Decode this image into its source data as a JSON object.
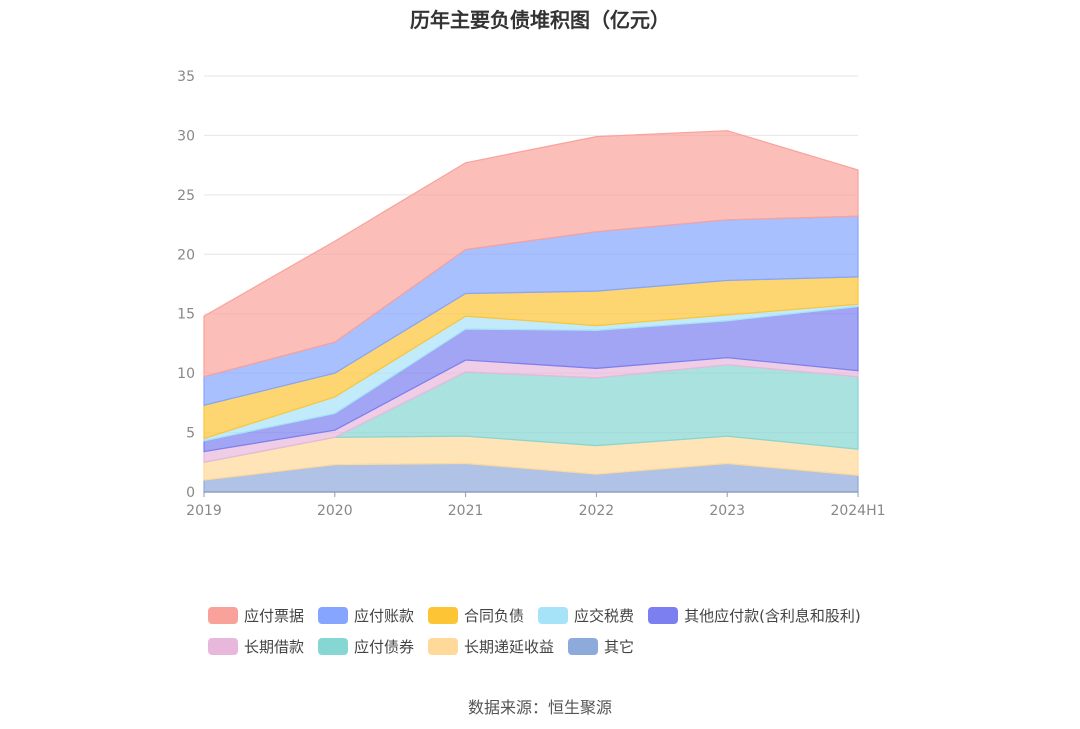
{
  "chart_data": {
    "type": "area",
    "stacked": true,
    "title": "历年主要负债堆积图（亿元）",
    "categories": [
      "2019",
      "2020",
      "2021",
      "2022",
      "2023",
      "2024H1"
    ],
    "ylim": [
      0,
      35
    ],
    "yticks": [
      "0",
      "5",
      "10",
      "15",
      "20",
      "25",
      "30",
      "35"
    ],
    "grid": true,
    "legend_position": "bottom",
    "series": [
      {
        "name": "其它",
        "color": "#8eaadb",
        "values": [
          1.0,
          2.3,
          2.4,
          1.5,
          2.4,
          1.4
        ]
      },
      {
        "name": "长期递延收益",
        "color": "#ffd99a",
        "values": [
          1.5,
          2.3,
          2.3,
          2.4,
          2.3,
          2.2
        ]
      },
      {
        "name": "应付债券",
        "color": "#86d6d3",
        "values": [
          0,
          0,
          5.4,
          5.7,
          6.0,
          6.1
        ]
      },
      {
        "name": "长期借款",
        "color": "#e8b8dc",
        "values": [
          0.9,
          0.6,
          1.0,
          0.8,
          0.6,
          0.5
        ]
      },
      {
        "name": "其他应付款(含利息和股利)",
        "color": "#7b7ff0",
        "values": [
          0.9,
          1.4,
          2.6,
          3.2,
          3.1,
          5.4
        ]
      },
      {
        "name": "应交税费",
        "color": "#a6e2f8",
        "values": [
          0.2,
          1.4,
          1.1,
          0.4,
          0.5,
          0.2
        ]
      },
      {
        "name": "合同负债",
        "color": "#fdc535",
        "values": [
          2.8,
          2.0,
          1.9,
          2.9,
          2.9,
          2.3
        ]
      },
      {
        "name": "应付账款",
        "color": "#85a5ff",
        "values": [
          2.4,
          2.6,
          3.7,
          5.0,
          5.1,
          5.1
        ]
      },
      {
        "name": "应付票据",
        "color": "#f9a29b",
        "values": [
          5.1,
          8.5,
          7.3,
          8.0,
          7.5,
          3.9
        ]
      }
    ]
  },
  "legend_rows": [
    [
      "应付票据",
      "应付账款",
      "合同负债",
      "应交税费",
      "其他应付款(含利息和股利)"
    ],
    [
      "长期借款",
      "应付债券",
      "长期递延收益",
      "其它"
    ]
  ],
  "source": "数据来源：恒生聚源"
}
